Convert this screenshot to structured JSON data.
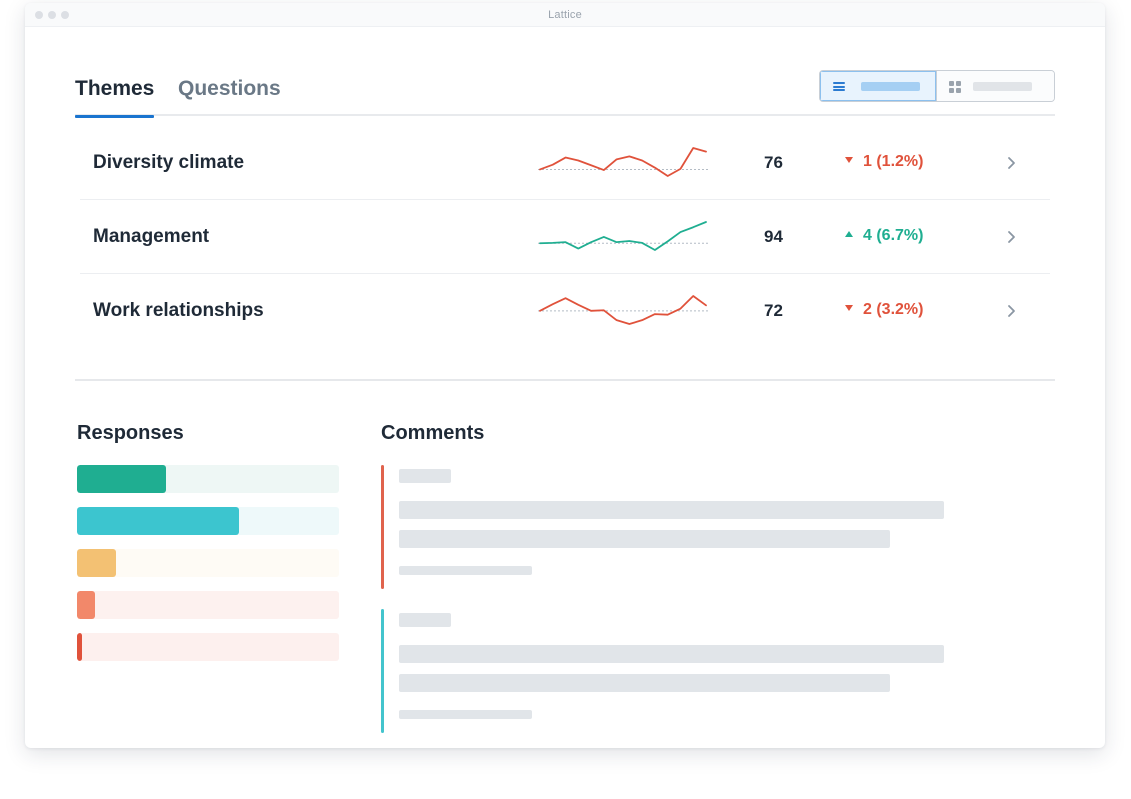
{
  "window": {
    "title": "Lattice"
  },
  "tabs": [
    {
      "label": "Themes",
      "active": true
    },
    {
      "label": "Questions",
      "active": false
    }
  ],
  "view_toggle": {
    "selected": "list",
    "options": [
      "list",
      "grid"
    ]
  },
  "themes": [
    {
      "name": "Diversity climate",
      "score": "76",
      "delta": "1 (1.2%)",
      "direction": "down",
      "color": "#e0523b",
      "trend": [
        76.6,
        77.4,
        78.6,
        78.1,
        77.3,
        76.5,
        78.3,
        78.8,
        78.1,
        76.9,
        75.5,
        76.7,
        80.2,
        79.6
      ]
    },
    {
      "name": "Management",
      "score": "94",
      "delta": "4 (6.7%)",
      "direction": "up",
      "color": "#1fae91",
      "trend": [
        90.8,
        90.9,
        91.1,
        89.4,
        91.1,
        92.5,
        91.1,
        91.4,
        90.9,
        89.0,
        91.3,
        93.8,
        95.1,
        96.5
      ]
    },
    {
      "name": "Work relationships",
      "score": "72",
      "delta": "2 (3.2%)",
      "direction": "down",
      "color": "#e0523b",
      "trend": [
        72.0,
        73.2,
        74.3,
        73.1,
        72.0,
        72.1,
        70.3,
        69.6,
        70.3,
        71.4,
        71.3,
        72.4,
        74.7,
        73.0
      ]
    }
  ],
  "responses": {
    "title": "Responses",
    "bars": [
      {
        "fill": 0.34,
        "color": "#1fae91",
        "track": "#eef7f5"
      },
      {
        "fill": 0.62,
        "color": "#3cc5cf",
        "track": "#eef9fa"
      },
      {
        "fill": 0.15,
        "color": "#f3c173",
        "track": "#fefbf5"
      },
      {
        "fill": 0.07,
        "color": "#f2886a",
        "track": "#fdf1ef"
      },
      {
        "fill": 0.02,
        "color": "#e0523b",
        "track": "#fdf0ee"
      }
    ]
  },
  "comments": {
    "title": "Comments",
    "items": [
      {
        "accent": "#e0634d"
      },
      {
        "accent": "#43c4cd"
      }
    ]
  }
}
